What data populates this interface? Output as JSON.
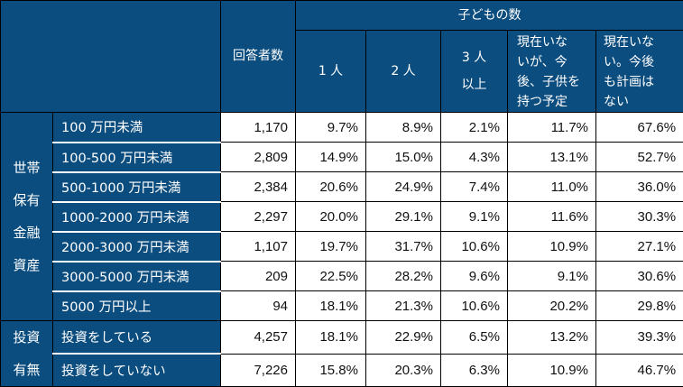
{
  "header": {
    "respondents": "回答者数",
    "children_group": "子どもの数",
    "columns": [
      "1 人",
      "2 人",
      "3 人\n以上",
      "現在いな\nいが、今\n後、子供を\n持つ予定",
      "現在いな\nい。今後\nも計画は\nない"
    ]
  },
  "groups": [
    {
      "label": "世帯\n保有\n金融\n資産",
      "rows": [
        {
          "label": "100 万円未満",
          "n": "1,170",
          "values": [
            "9.7%",
            "8.9%",
            "2.1%",
            "11.7%",
            "67.6%"
          ]
        },
        {
          "label": "100-500 万円未満",
          "n": "2,809",
          "values": [
            "14.9%",
            "15.0%",
            "4.3%",
            "13.1%",
            "52.7%"
          ]
        },
        {
          "label": "500-1000 万円未満",
          "n": "2,384",
          "values": [
            "20.6%",
            "24.9%",
            "7.4%",
            "11.0%",
            "36.0%"
          ]
        },
        {
          "label": "1000-2000 万円未満",
          "n": "2,297",
          "values": [
            "20.0%",
            "29.1%",
            "9.1%",
            "11.6%",
            "30.3%"
          ]
        },
        {
          "label": "2000-3000 万円未満",
          "n": "1,107",
          "values": [
            "19.7%",
            "31.7%",
            "10.6%",
            "10.9%",
            "27.1%"
          ]
        },
        {
          "label": "3000-5000 万円未満",
          "n": "209",
          "values": [
            "22.5%",
            "28.2%",
            "9.6%",
            "9.1%",
            "30.6%"
          ]
        },
        {
          "label": "5000 万円以上",
          "n": "94",
          "values": [
            "18.1%",
            "21.3%",
            "10.6%",
            "20.2%",
            "29.8%"
          ]
        }
      ]
    },
    {
      "label": "投資\n有無",
      "rows": [
        {
          "label": "投資をしている",
          "n": "4,257",
          "values": [
            "18.1%",
            "22.9%",
            "6.5%",
            "13.2%",
            "39.3%"
          ]
        },
        {
          "label": "投資をしていない",
          "n": "7,226",
          "values": [
            "15.8%",
            "20.3%",
            "6.3%",
            "10.9%",
            "46.7%"
          ]
        }
      ]
    }
  ]
}
